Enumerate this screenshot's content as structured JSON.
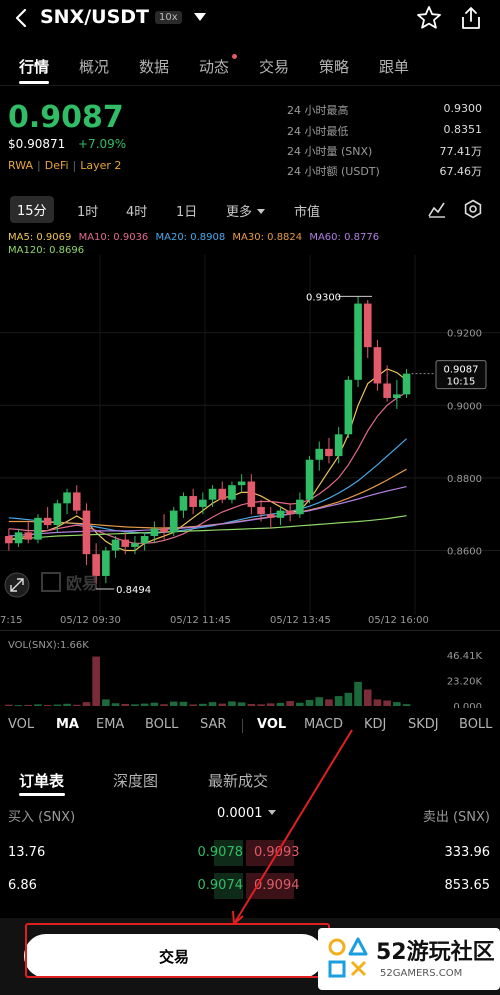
{
  "header": {
    "pair": "SNX/USDT",
    "leverage": "10x"
  },
  "tabs": [
    {
      "label": "行情"
    },
    {
      "label": "概况"
    },
    {
      "label": "数据"
    },
    {
      "label": "动态"
    },
    {
      "label": "交易"
    },
    {
      "label": "策略"
    },
    {
      "label": "跟单"
    }
  ],
  "price": {
    "last": "0.9087",
    "fiat": "$0.90871",
    "change": "+7.09%",
    "tags": [
      "RWA",
      "DeFi",
      "Layer 2"
    ]
  },
  "stats": [
    {
      "label": "24 小时最高",
      "value": "0.9300"
    },
    {
      "label": "24 小时最低",
      "value": "0.8351"
    },
    {
      "label": "24 小时量 (SNX)",
      "value": "77.41万"
    },
    {
      "label": "24 小时额 (USDT)",
      "value": "67.46万"
    }
  ],
  "intervals": {
    "items": [
      "15分",
      "1时",
      "4时",
      "1日",
      "更多",
      "市值"
    ]
  },
  "ma_legend": {
    "ma5": "MA5: 0.9069",
    "ma10": "MA10: 0.9036",
    "ma20": "MA20: 0.8908",
    "ma30": "MA30: 0.8824",
    "ma60": "MA60: 0.8776",
    "ma120": "MA120: 0.8696"
  },
  "colors": {
    "up": "#31bd65",
    "down": "#e35b6a",
    "ma5": "#f0c45a",
    "ma10": "#e36a8c",
    "ma20": "#4aa8e8",
    "ma30": "#e89a4a",
    "ma60": "#b07fe0",
    "ma120": "#8fd86a"
  },
  "chart_data": {
    "type": "candlestick",
    "y_ticks": [
      "0.9200",
      "0.9000",
      "0.8800",
      "0.8600"
    ],
    "x_ticks": [
      "7:15",
      "05/12 09:30",
      "05/12 11:45",
      "05/12 13:45",
      "05/12 16:00"
    ],
    "ylim": [
      0.845,
      0.94
    ],
    "high_label": "0.9300",
    "low_label": "0.8494",
    "current_price": "0.9087",
    "countdown": "10:15",
    "watermark": "欧易",
    "candles": [
      {
        "o": 0.864,
        "h": 0.866,
        "l": 0.86,
        "c": 0.862
      },
      {
        "o": 0.862,
        "h": 0.866,
        "l": 0.861,
        "c": 0.865
      },
      {
        "o": 0.865,
        "h": 0.868,
        "l": 0.862,
        "c": 0.863
      },
      {
        "o": 0.863,
        "h": 0.87,
        "l": 0.862,
        "c": 0.869
      },
      {
        "o": 0.869,
        "h": 0.872,
        "l": 0.866,
        "c": 0.867
      },
      {
        "o": 0.867,
        "h": 0.874,
        "l": 0.865,
        "c": 0.873
      },
      {
        "o": 0.873,
        "h": 0.877,
        "l": 0.87,
        "c": 0.876
      },
      {
        "o": 0.876,
        "h": 0.878,
        "l": 0.87,
        "c": 0.871
      },
      {
        "o": 0.871,
        "h": 0.873,
        "l": 0.856,
        "c": 0.859
      },
      {
        "o": 0.859,
        "h": 0.862,
        "l": 0.8494,
        "c": 0.853
      },
      {
        "o": 0.853,
        "h": 0.861,
        "l": 0.851,
        "c": 0.86
      },
      {
        "o": 0.86,
        "h": 0.864,
        "l": 0.858,
        "c": 0.863
      },
      {
        "o": 0.863,
        "h": 0.865,
        "l": 0.859,
        "c": 0.861
      },
      {
        "o": 0.861,
        "h": 0.864,
        "l": 0.859,
        "c": 0.862
      },
      {
        "o": 0.862,
        "h": 0.865,
        "l": 0.86,
        "c": 0.864
      },
      {
        "o": 0.864,
        "h": 0.868,
        "l": 0.862,
        "c": 0.866
      },
      {
        "o": 0.866,
        "h": 0.87,
        "l": 0.863,
        "c": 0.865
      },
      {
        "o": 0.865,
        "h": 0.872,
        "l": 0.864,
        "c": 0.871
      },
      {
        "o": 0.871,
        "h": 0.876,
        "l": 0.869,
        "c": 0.875
      },
      {
        "o": 0.875,
        "h": 0.877,
        "l": 0.87,
        "c": 0.872
      },
      {
        "o": 0.872,
        "h": 0.876,
        "l": 0.87,
        "c": 0.874
      },
      {
        "o": 0.874,
        "h": 0.878,
        "l": 0.872,
        "c": 0.877
      },
      {
        "o": 0.877,
        "h": 0.879,
        "l": 0.873,
        "c": 0.874
      },
      {
        "o": 0.874,
        "h": 0.879,
        "l": 0.873,
        "c": 0.878
      },
      {
        "o": 0.878,
        "h": 0.881,
        "l": 0.876,
        "c": 0.879
      },
      {
        "o": 0.879,
        "h": 0.881,
        "l": 0.87,
        "c": 0.872
      },
      {
        "o": 0.872,
        "h": 0.874,
        "l": 0.868,
        "c": 0.87
      },
      {
        "o": 0.87,
        "h": 0.872,
        "l": 0.866,
        "c": 0.869
      },
      {
        "o": 0.869,
        "h": 0.872,
        "l": 0.867,
        "c": 0.871
      },
      {
        "o": 0.871,
        "h": 0.873,
        "l": 0.868,
        "c": 0.87
      },
      {
        "o": 0.87,
        "h": 0.876,
        "l": 0.869,
        "c": 0.874
      },
      {
        "o": 0.874,
        "h": 0.886,
        "l": 0.873,
        "c": 0.885
      },
      {
        "o": 0.885,
        "h": 0.89,
        "l": 0.882,
        "c": 0.888
      },
      {
        "o": 0.888,
        "h": 0.891,
        "l": 0.884,
        "c": 0.886
      },
      {
        "o": 0.886,
        "h": 0.894,
        "l": 0.884,
        "c": 0.892
      },
      {
        "o": 0.892,
        "h": 0.908,
        "l": 0.891,
        "c": 0.907
      },
      {
        "o": 0.907,
        "h": 0.93,
        "l": 0.905,
        "c": 0.928
      },
      {
        "o": 0.928,
        "h": 0.929,
        "l": 0.913,
        "c": 0.916
      },
      {
        "o": 0.916,
        "h": 0.918,
        "l": 0.904,
        "c": 0.906
      },
      {
        "o": 0.906,
        "h": 0.911,
        "l": 0.901,
        "c": 0.902
      },
      {
        "o": 0.902,
        "h": 0.907,
        "l": 0.899,
        "c": 0.903
      },
      {
        "o": 0.903,
        "h": 0.91,
        "l": 0.902,
        "c": 0.9087
      }
    ],
    "ma_lines": {
      "ma5": [
        0.863,
        0.8635,
        0.864,
        0.865,
        0.8655,
        0.8665,
        0.868,
        0.8695,
        0.868,
        0.865,
        0.8625,
        0.861,
        0.86,
        0.86,
        0.862,
        0.863,
        0.864,
        0.865,
        0.867,
        0.869,
        0.871,
        0.873,
        0.8745,
        0.875,
        0.876,
        0.876,
        0.875,
        0.8735,
        0.872,
        0.8705,
        0.871,
        0.874,
        0.878,
        0.882,
        0.886,
        0.892,
        0.9,
        0.906,
        0.908,
        0.91,
        0.909,
        0.9069
      ],
      "ma10": [
        0.866,
        0.8658,
        0.8655,
        0.8655,
        0.8655,
        0.866,
        0.8665,
        0.867,
        0.8665,
        0.8655,
        0.8645,
        0.8635,
        0.8625,
        0.862,
        0.862,
        0.8622,
        0.8628,
        0.8636,
        0.8646,
        0.866,
        0.8676,
        0.8692,
        0.8706,
        0.8716,
        0.8726,
        0.8732,
        0.8735,
        0.8735,
        0.8732,
        0.8728,
        0.873,
        0.874,
        0.8756,
        0.8776,
        0.88,
        0.8836,
        0.888,
        0.893,
        0.897,
        0.9,
        0.902,
        0.9036
      ],
      "ma20": [
        0.869,
        0.8688,
        0.8685,
        0.8682,
        0.868,
        0.8678,
        0.8676,
        0.8674,
        0.867,
        0.8665,
        0.866,
        0.8655,
        0.8652,
        0.865,
        0.8648,
        0.8648,
        0.865,
        0.8652,
        0.8656,
        0.866,
        0.8664,
        0.8668,
        0.8674,
        0.868,
        0.8686,
        0.8692,
        0.8696,
        0.87,
        0.8704,
        0.8708,
        0.8714,
        0.8722,
        0.8732,
        0.8744,
        0.8758,
        0.8774,
        0.8792,
        0.8814,
        0.8836,
        0.886,
        0.8884,
        0.8908
      ],
      "ma30": [
        0.868,
        0.868,
        0.868,
        0.8679,
        0.8678,
        0.8677,
        0.8676,
        0.8675,
        0.8673,
        0.8671,
        0.8669,
        0.8667,
        0.8665,
        0.8664,
        0.8663,
        0.8662,
        0.8662,
        0.8663,
        0.8664,
        0.8666,
        0.8668,
        0.8671,
        0.8674,
        0.8677,
        0.8681,
        0.8685,
        0.8689,
        0.8693,
        0.8697,
        0.8701,
        0.8706,
        0.8712,
        0.8718,
        0.8726,
        0.8734,
        0.8744,
        0.8755,
        0.8767,
        0.878,
        0.8794,
        0.8809,
        0.8824
      ],
      "ma60": [
        0.864,
        0.8642,
        0.8644,
        0.8646,
        0.8648,
        0.865,
        0.8651,
        0.8652,
        0.8653,
        0.8654,
        0.8654,
        0.8654,
        0.8654,
        0.8655,
        0.8656,
        0.8657,
        0.8658,
        0.866,
        0.8662,
        0.8664,
        0.8667,
        0.867,
        0.8673,
        0.8676,
        0.868,
        0.8684,
        0.8688,
        0.8692,
        0.8696,
        0.87,
        0.8705,
        0.871,
        0.8716,
        0.8722,
        0.8728,
        0.8735,
        0.8742,
        0.875,
        0.8757,
        0.8764,
        0.877,
        0.8776
      ],
      "ma120": [
        0.863,
        0.8632,
        0.8634,
        0.8636,
        0.8638,
        0.864,
        0.8641,
        0.8642,
        0.8643,
        0.8644,
        0.8645,
        0.8646,
        0.8647,
        0.8648,
        0.8649,
        0.865,
        0.8651,
        0.8652,
        0.8653,
        0.8654,
        0.8655,
        0.8656,
        0.8657,
        0.8658,
        0.8659,
        0.866,
        0.8661,
        0.8662,
        0.8664,
        0.8666,
        0.8668,
        0.867,
        0.8672,
        0.8674,
        0.8676,
        0.8678,
        0.868,
        0.8682,
        0.8685,
        0.8688,
        0.8692,
        0.8696
      ]
    }
  },
  "vol_chart": {
    "label": "VOL(SNX):1.66K",
    "y_ticks": [
      "46.41K",
      "23.20K",
      "0.000"
    ],
    "ymax": 46.41,
    "values": [
      1.2,
      0.8,
      1.0,
      1.5,
      0.9,
      1.3,
      2.0,
      1.1,
      3.5,
      45.0,
      6.0,
      2.5,
      1.8,
      1.5,
      2.2,
      3.0,
      1.6,
      4.0,
      3.8,
      1.4,
      2.0,
      3.5,
      2.2,
      4.2,
      3.3,
      1.8,
      1.5,
      2.4,
      2.8,
      4.5,
      3.0,
      5.5,
      8.0,
      6.0,
      9.0,
      12.0,
      22.0,
      15.0,
      6.0,
      5.0,
      3.5,
      1.66
    ]
  },
  "indicators": {
    "main": [
      "VOL",
      "MA",
      "EMA",
      "BOLL",
      "SAR"
    ],
    "sub": [
      "VOL",
      "MACD",
      "KDJ",
      "SKDJ",
      "BOLL"
    ]
  },
  "orderbook": {
    "tabs": [
      "订单表",
      "深度图",
      "最新成交"
    ],
    "bid_header": "买入 (SNX)",
    "ask_header": "卖出 (SNX)",
    "step": "0.0001",
    "rows": [
      {
        "bid_qty": "13.76",
        "bid_price": "0.9078",
        "ask_price": "0.9093",
        "ask_qty": "333.96",
        "bid_fill": 0.1,
        "ask_fill": 0.05
      },
      {
        "bid_qty": "6.86",
        "bid_price": "0.9074",
        "ask_price": "0.9094",
        "ask_qty": "853.65",
        "bid_fill": 0.05,
        "ask_fill": 0.2
      }
    ]
  },
  "bottom": {
    "trade_button": "交易"
  },
  "watermark": {
    "title": "52游玩社区",
    "sub": "52GAMERS.COM"
  }
}
